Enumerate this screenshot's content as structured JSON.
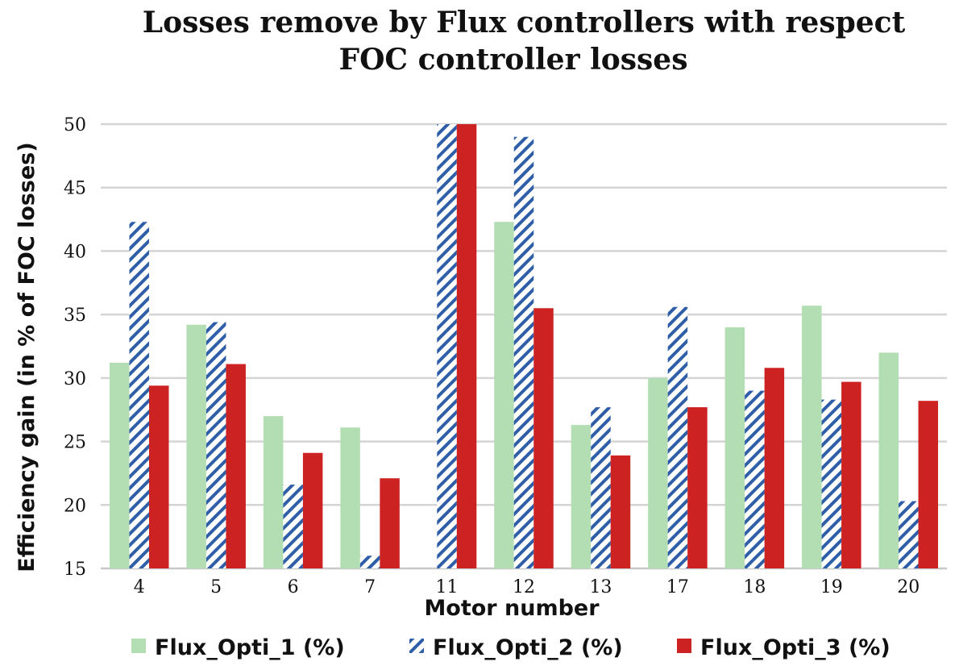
{
  "chart_data": {
    "type": "bar",
    "title": "Losses remove by Flux controllers with respect FOC controller losses",
    "title_lines": [
      "Losses remove by Flux controllers with respect",
      "FOC controller losses"
    ],
    "xlabel": "Motor number",
    "ylabel": "Efficiency gain (in % of FOC losses)",
    "ylim": [
      15,
      50
    ],
    "yticks": [
      15,
      20,
      25,
      30,
      35,
      40,
      45,
      50
    ],
    "grid": true,
    "legend_position": "bottom",
    "categories": [
      "4",
      "5",
      "6",
      "7",
      "11",
      "12",
      "13",
      "17",
      "18",
      "19",
      "20"
    ],
    "series": [
      {
        "name": "Flux_Opti_1 (%)",
        "color": "#b3ddb3",
        "pattern": "solid",
        "values": [
          31.2,
          34.2,
          27.0,
          26.1,
          15.0,
          42.3,
          26.3,
          30.0,
          34.0,
          35.7,
          32.0
        ]
      },
      {
        "name": "Flux_Opti_2 (%)",
        "color": "#2e5ea8",
        "pattern": "diagonal-hatch",
        "values": [
          42.3,
          34.4,
          21.6,
          16.0,
          50.0,
          49.0,
          27.7,
          35.6,
          29.0,
          28.3,
          20.3
        ]
      },
      {
        "name": "Flux_Opti_3 (%)",
        "color": "#cc2222",
        "pattern": "solid",
        "values": [
          29.4,
          31.1,
          24.1,
          22.1,
          50.0,
          35.5,
          23.9,
          27.7,
          30.8,
          29.7,
          28.2
        ]
      }
    ]
  }
}
